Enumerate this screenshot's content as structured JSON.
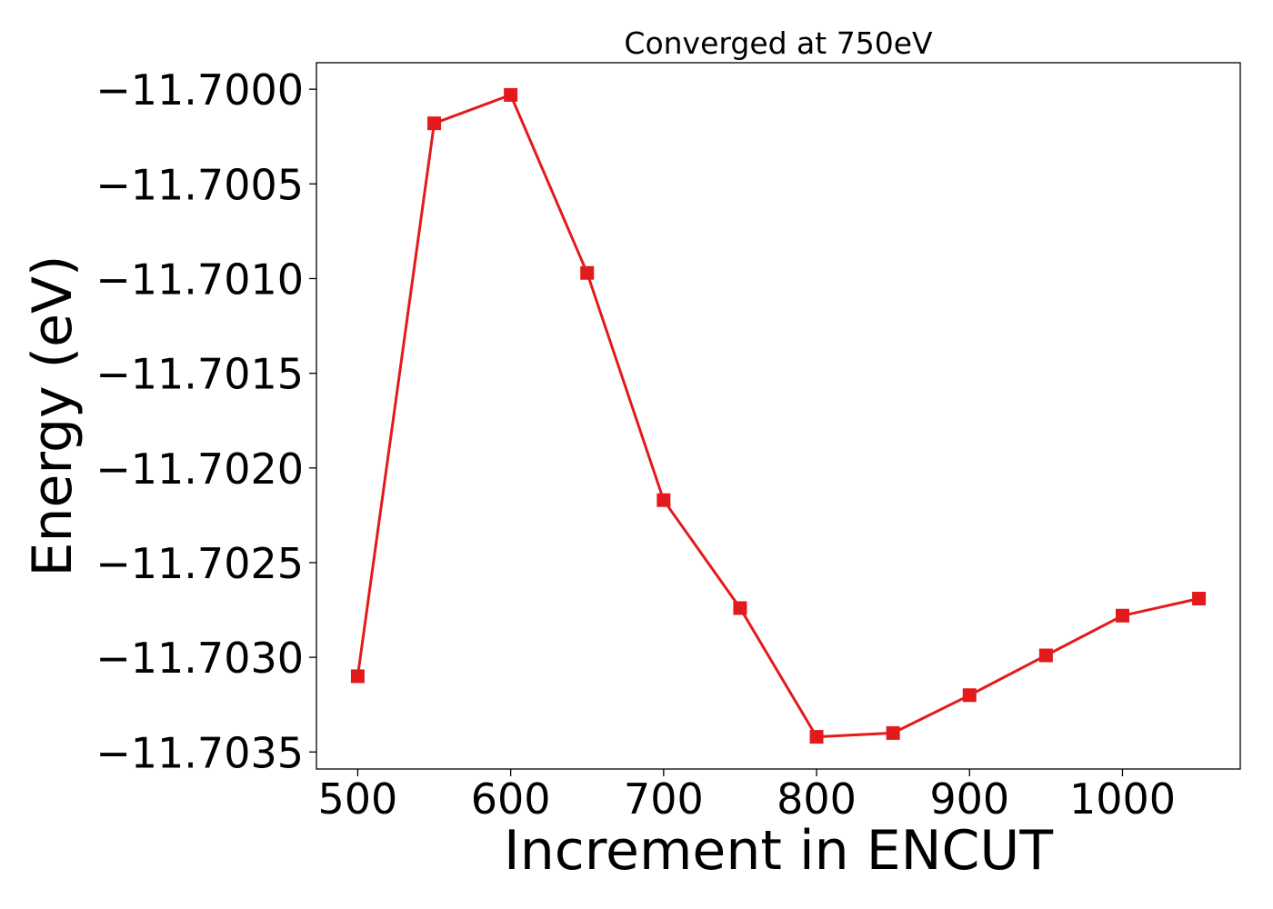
{
  "chart_data": {
    "type": "line",
    "title": "Converged at 750eV",
    "xlabel": "Increment in ENCUT",
    "ylabel": "Energy (eV)",
    "xlim": [
      473,
      1077
    ],
    "ylim": [
      -11.70359,
      -11.69986
    ],
    "x_ticks": [
      500,
      600,
      700,
      800,
      900,
      1000
    ],
    "y_ticks": [
      -11.7035,
      -11.703,
      -11.7025,
      -11.702,
      -11.7015,
      -11.701,
      -11.7005,
      -11.7
    ],
    "y_tick_labels": [
      "−11.7035",
      "−11.7030",
      "−11.7025",
      "−11.7020",
      "−11.7015",
      "−11.7010",
      "−11.7005",
      "−11.7000"
    ],
    "grid": false,
    "series": [
      {
        "color": "#e31a1c",
        "marker": "square",
        "x": [
          500,
          550,
          600,
          650,
          700,
          750,
          800,
          850,
          900,
          950,
          1000,
          1050
        ],
        "y": [
          -11.7031,
          -11.70018,
          -11.70003,
          -11.70097,
          -11.70217,
          -11.70274,
          -11.70342,
          -11.7034,
          -11.7032,
          -11.70299,
          -11.70278,
          -11.70269
        ]
      }
    ]
  }
}
